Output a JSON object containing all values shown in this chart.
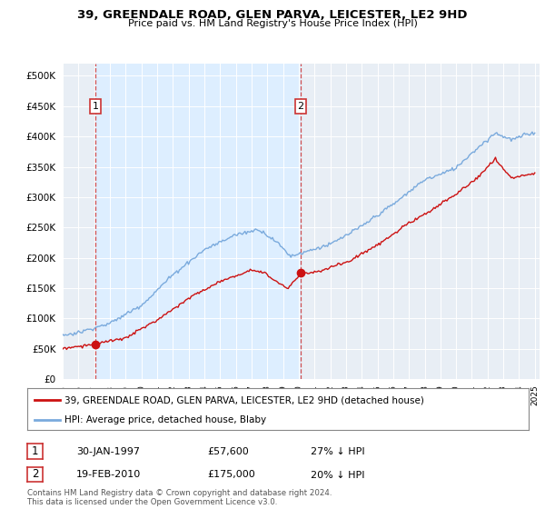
{
  "title": "39, GREENDALE ROAD, GLEN PARVA, LEICESTER, LE2 9HD",
  "subtitle": "Price paid vs. HM Land Registry's House Price Index (HPI)",
  "sale1_label": "30-JAN-1997",
  "sale1_price": 57600,
  "sale1_text": "27% ↓ HPI",
  "sale1_x": 1997.08,
  "sale2_label": "19-FEB-2010",
  "sale2_price": 175000,
  "sale2_text": "20% ↓ HPI",
  "sale2_x": 2010.13,
  "hpi_color": "#7aaadd",
  "price_color": "#cc1111",
  "dashed_color": "#cc3333",
  "shade_color": "#ddeeff",
  "bg_color": "#e8eef5",
  "legend1": "39, GREENDALE ROAD, GLEN PARVA, LEICESTER, LE2 9HD (detached house)",
  "legend2": "HPI: Average price, detached house, Blaby",
  "footer": "Contains HM Land Registry data © Crown copyright and database right 2024.\nThis data is licensed under the Open Government Licence v3.0.",
  "yticks": [
    0,
    50000,
    100000,
    150000,
    200000,
    250000,
    300000,
    350000,
    400000,
    450000,
    500000
  ]
}
